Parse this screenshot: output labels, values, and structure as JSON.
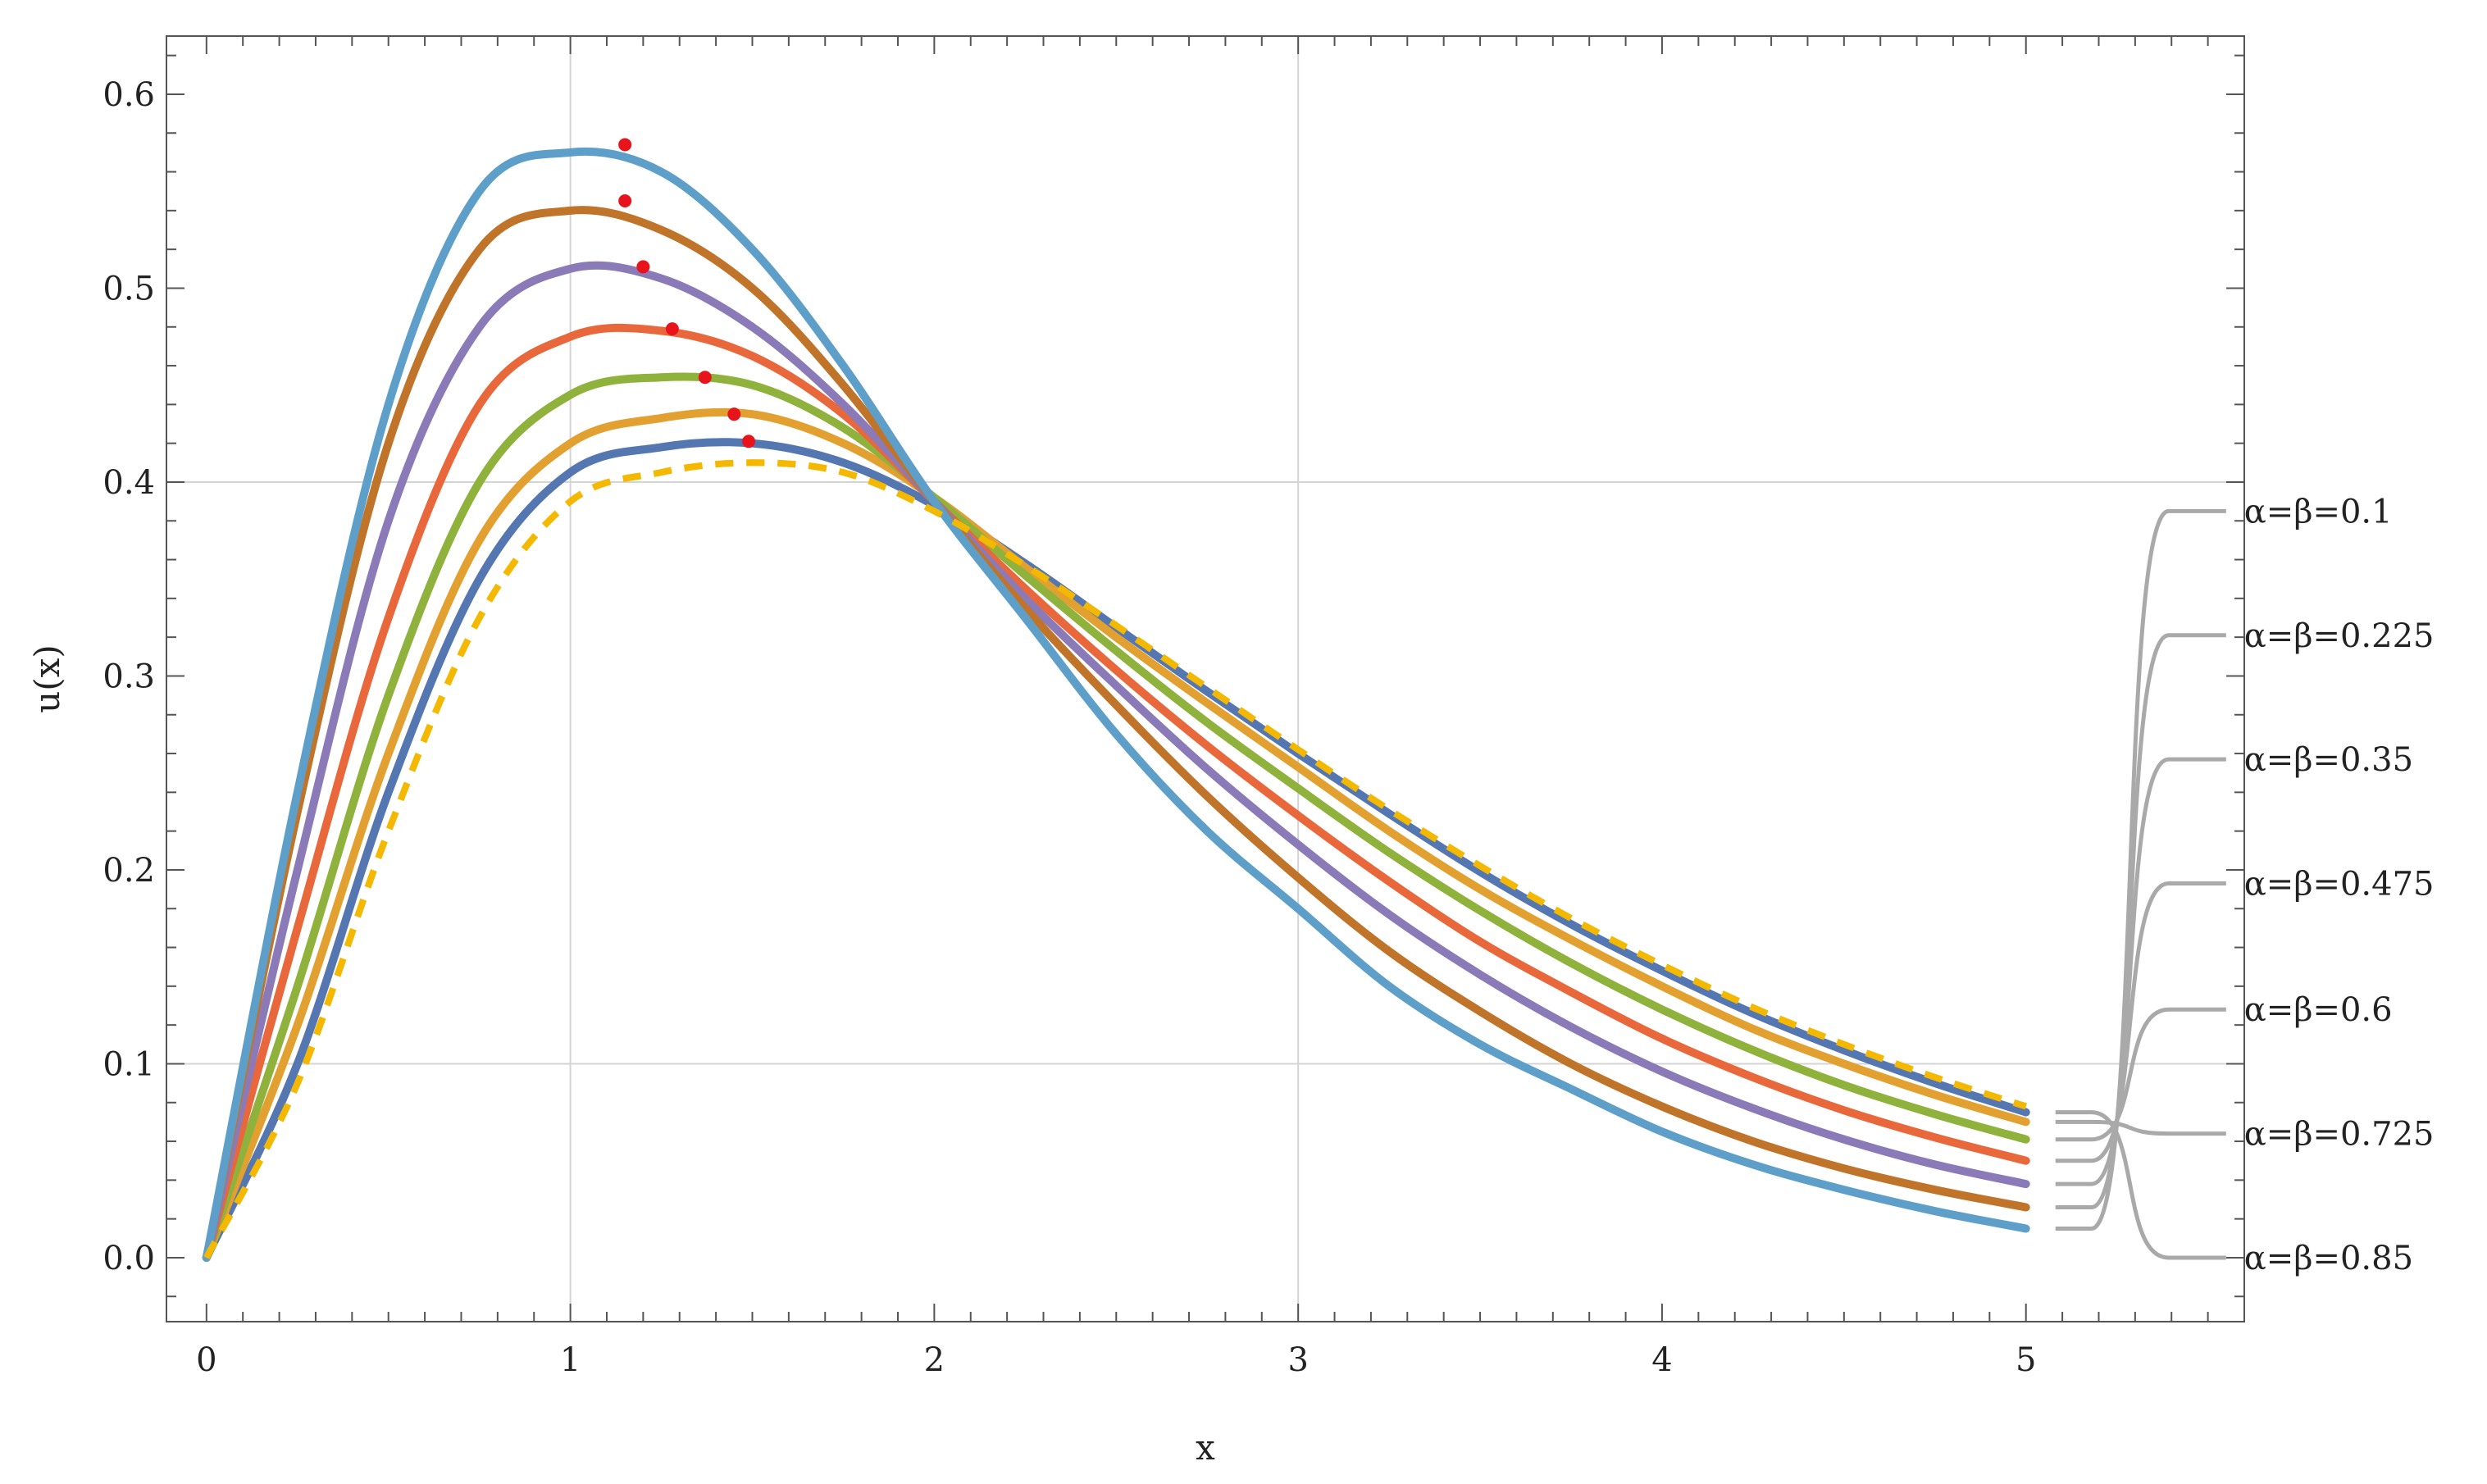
{
  "chart_data": {
    "type": "line",
    "title": "",
    "xlabel": "x",
    "ylabel": "u(x)",
    "xlim": [
      -0.11,
      5.6
    ],
    "ylim": [
      -0.033,
      0.63
    ],
    "x_ticks": [
      "0",
      "1",
      "2",
      "3",
      "4",
      "5"
    ],
    "y_ticks": [
      "0.0",
      "0.1",
      "0.2",
      "0.3",
      "0.4",
      "0.5",
      "0.6"
    ],
    "grid": true,
    "x": [
      0,
      0.25,
      0.5,
      0.75,
      1.0,
      1.25,
      1.5,
      1.75,
      2.0,
      2.25,
      2.5,
      2.75,
      3.0,
      3.25,
      3.5,
      3.75,
      4.0,
      4.25,
      4.5,
      4.75,
      5.0
    ],
    "series": [
      {
        "name": "α=β=0.1",
        "color": "#5E9FC9",
        "values": [
          0,
          0.24,
          0.44,
          0.55,
          0.57,
          0.56,
          0.52,
          0.46,
          0.39,
          0.33,
          0.27,
          0.22,
          0.18,
          0.14,
          0.11,
          0.087,
          0.065,
          0.048,
          0.035,
          0.024,
          0.015
        ]
      },
      {
        "name": "α=β=0.225",
        "color": "#C0742A",
        "values": [
          0,
          0.23,
          0.42,
          0.52,
          0.54,
          0.53,
          0.5,
          0.45,
          0.39,
          0.335,
          0.285,
          0.238,
          0.196,
          0.158,
          0.127,
          0.1,
          0.078,
          0.06,
          0.046,
          0.035,
          0.026
        ]
      },
      {
        "name": "α=β=0.35",
        "color": "#8A7BB8",
        "values": [
          0,
          0.2,
          0.38,
          0.48,
          0.51,
          0.505,
          0.48,
          0.44,
          0.39,
          0.34,
          0.295,
          0.252,
          0.213,
          0.177,
          0.146,
          0.119,
          0.096,
          0.077,
          0.061,
          0.048,
          0.038
        ]
      },
      {
        "name": "α=β=0.475",
        "color": "#E8683C",
        "values": [
          0,
          0.17,
          0.33,
          0.44,
          0.475,
          0.478,
          0.465,
          0.435,
          0.39,
          0.345,
          0.303,
          0.264,
          0.228,
          0.194,
          0.163,
          0.137,
          0.113,
          0.093,
          0.076,
          0.062,
          0.05
        ]
      },
      {
        "name": "α=β=0.6",
        "color": "#8FB23C",
        "values": [
          0,
          0.14,
          0.29,
          0.4,
          0.445,
          0.454,
          0.45,
          0.428,
          0.392,
          0.352,
          0.313,
          0.276,
          0.242,
          0.209,
          0.179,
          0.152,
          0.128,
          0.107,
          0.089,
          0.074,
          0.061
        ]
      },
      {
        "name": "α=β=0.725",
        "color": "#E2A030",
        "values": [
          0,
          0.12,
          0.26,
          0.37,
          0.42,
          0.433,
          0.435,
          0.42,
          0.392,
          0.356,
          0.32,
          0.286,
          0.253,
          0.22,
          0.19,
          0.164,
          0.14,
          0.118,
          0.1,
          0.084,
          0.07
        ]
      },
      {
        "name": "α=β=0.85",
        "color": "#5477B2",
        "values": [
          0,
          0.1,
          0.24,
          0.35,
          0.405,
          0.418,
          0.42,
          0.41,
          0.388,
          0.358,
          0.325,
          0.292,
          0.26,
          0.229,
          0.199,
          0.172,
          0.148,
          0.126,
          0.107,
          0.09,
          0.075
        ]
      },
      {
        "name": "",
        "color": "#F5B800",
        "dashed": true,
        "values": [
          0,
          0.09,
          0.22,
          0.33,
          0.39,
          0.405,
          0.41,
          0.405,
          0.385,
          0.357,
          0.326,
          0.294,
          0.262,
          0.231,
          0.202,
          0.175,
          0.151,
          0.129,
          0.11,
          0.093,
          0.078
        ]
      }
    ],
    "peaks": [
      {
        "x": 1.15,
        "y": 0.574
      },
      {
        "x": 1.15,
        "y": 0.545
      },
      {
        "x": 1.2,
        "y": 0.511
      },
      {
        "x": 1.28,
        "y": 0.479
      },
      {
        "x": 1.37,
        "y": 0.454
      },
      {
        "x": 1.45,
        "y": 0.435
      },
      {
        "x": 1.49,
        "y": 0.421
      }
    ],
    "legend": [
      {
        "label": "α=β=0.1",
        "y_anchor": 0.385
      },
      {
        "label": "α=β=0.225",
        "y_anchor": 0.321
      },
      {
        "label": "α=β=0.35",
        "y_anchor": 0.257
      },
      {
        "label": "α=β=0.475",
        "y_anchor": 0.193
      },
      {
        "label": "α=β=0.6",
        "y_anchor": 0.128
      },
      {
        "label": "α=β=0.725",
        "y_anchor": 0.064
      },
      {
        "label": "α=β=0.85",
        "y_anchor": 0.0
      }
    ],
    "legend_placement": "right",
    "peak_marker_color": "#E8141C"
  }
}
